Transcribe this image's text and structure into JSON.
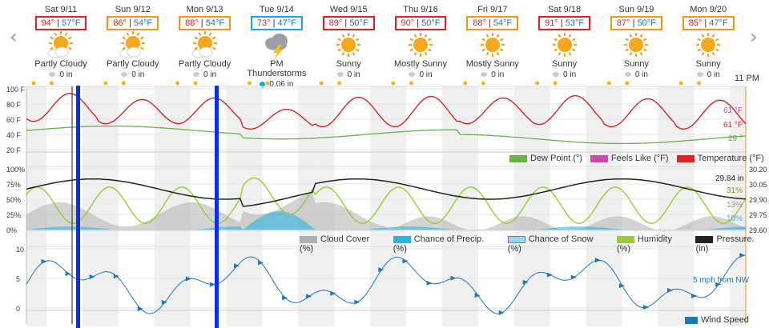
{
  "days": [
    {
      "date": "Sat 9/11",
      "hi": "94°",
      "lo": "57°F",
      "box": "#e02020",
      "icon": "sun-cloud-icon",
      "cond": "Partly Cloudy",
      "precip": "0 in",
      "drop": "gray"
    },
    {
      "date": "Sun 9/12",
      "hi": "86°",
      "lo": "54°F",
      "box": "#f0921e",
      "icon": "sun-cloud-icon",
      "cond": "Partly Cloudy",
      "precip": "0 in",
      "drop": "gray"
    },
    {
      "date": "Mon 9/13",
      "hi": "88°",
      "lo": "54°F",
      "box": "#f0921e",
      "icon": "sun-cloud-icon",
      "cond": "Partly Cloudy",
      "precip": "0 in",
      "drop": "gray"
    },
    {
      "date": "Tue 9/14",
      "hi": "73°",
      "lo": "47°F",
      "box": "#1aa3e8",
      "icon": "thunderstorm-icon",
      "cond": "PM Thunderstorms",
      "precip": "0.06 in",
      "drop": "blue"
    },
    {
      "date": "Wed 9/15",
      "hi": "89°",
      "lo": "50°F",
      "box": "#e02020",
      "icon": "sun-icon",
      "cond": "Sunny",
      "precip": "0 in",
      "drop": "gray"
    },
    {
      "date": "Thu 9/16",
      "hi": "90°",
      "lo": "50°F",
      "box": "#e02020",
      "icon": "sun-icon",
      "cond": "Mostly Sunny",
      "precip": "0 in",
      "drop": "gray"
    },
    {
      "date": "Fri 9/17",
      "hi": "88°",
      "lo": "54°F",
      "box": "#f0921e",
      "icon": "sun-icon",
      "cond": "Mostly Sunny",
      "precip": "0 in",
      "drop": "gray"
    },
    {
      "date": "Sat 9/18",
      "hi": "91°",
      "lo": "53°F",
      "box": "#e02020",
      "icon": "sun-icon",
      "cond": "Sunny",
      "precip": "0 in",
      "drop": "gray"
    },
    {
      "date": "Sun 9/19",
      "hi": "87°",
      "lo": "50°F",
      "box": "#f0921e",
      "icon": "sun-icon",
      "cond": "Sunny",
      "precip": "0 in",
      "drop": "gray"
    },
    {
      "date": "Mon 9/20",
      "hi": "85°",
      "lo": "47°F",
      "box": "#f0921e",
      "icon": "sun-icon",
      "cond": "Sunny",
      "precip": "0 in",
      "drop": "gray"
    }
  ],
  "nav": {
    "prev": "‹",
    "next": "›"
  },
  "time_label": "11 PM",
  "temp_chart": {
    "y_ticks": [
      "100 F",
      "80 F",
      "60 F",
      "40 F",
      "20 F"
    ],
    "end_labels": {
      "feels": "61 °F",
      "temp": "61 °F",
      "dew": "29 °"
    },
    "legend": [
      "Dew Point (°)",
      "Feels Like (°F)",
      "Temperature (°F)"
    ]
  },
  "pct_chart": {
    "y_ticks": [
      "100%",
      "75%",
      "50%",
      "25%",
      "0%"
    ],
    "right_ticks": [
      "30.20",
      "30.05",
      "29.90",
      "29.75",
      "29.60"
    ],
    "end_labels": {
      "pressure": "29.84 in",
      "humidity": "31%",
      "cloud": "13%",
      "precip": "10%"
    },
    "legend": [
      "Cloud Cover (%)",
      "Chance of Precip. (%)",
      "Chance of Snow (%)",
      "Humidity (%)",
      "Pressure. (in)"
    ]
  },
  "wind_chart": {
    "y_ticks": [
      "10",
      "5",
      "0"
    ],
    "end_label": "5 mph from NW",
    "legend": [
      "Wind Speed"
    ]
  },
  "colors": {
    "temp": "#d62728",
    "feels": "#c04fa8",
    "dew": "#6ab04c",
    "cloud": "#b0b0b0",
    "precip": "#2bb3e0",
    "humidity": "#9acd32",
    "pressure": "#222222",
    "wind": "#1f77b4",
    "marker": "#0a2fe6"
  }
}
